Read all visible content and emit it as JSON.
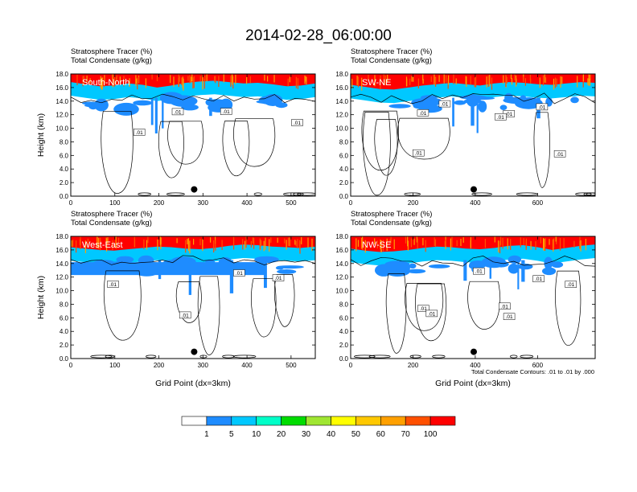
{
  "title": "2014-02-28_06:00:00",
  "colors": {
    "bands": [
      "#ffffff",
      "#1e8cff",
      "#00c8ff",
      "#00ffc8",
      "#00dc00",
      "#a0e632",
      "#ffff00",
      "#ffc800",
      "#ffa000",
      "#ff5000",
      "#ff0000"
    ],
    "contour": "#000000"
  },
  "chart_data": [
    {
      "type": "heatmap",
      "panel": "South-North",
      "subtitle_line1": "Stratosphere Tracer   (%)",
      "subtitle_line2": "Total Condensate   (g/kg)",
      "ylabel": "Height (km)",
      "xlabel": "",
      "xlim": [
        0,
        555
      ],
      "ylim": [
        0,
        18
      ],
      "xticks": [
        0,
        100,
        200,
        300,
        400,
        500
      ],
      "yticks": [
        "0.0",
        "2.0",
        "4.0",
        "6.0",
        "8.0",
        "10.0",
        "12.0",
        "14.0",
        "16.0",
        "18.0"
      ],
      "tracer_top_km": [
        16.4,
        16.1,
        15.8,
        15.9,
        16.2,
        16.0,
        15.6,
        15.9,
        16.3,
        16.5,
        16.6,
        16.4,
        16.2,
        16.3,
        16.1,
        15.8,
        15.9,
        16.2
      ],
      "contour_labels": [
        ".01",
        ".01",
        ".01",
        ".01"
      ],
      "marker_x": 280,
      "marker_y": 1.0
    },
    {
      "type": "heatmap",
      "panel": "SW-NE",
      "subtitle_line1": "Stratosphere Tracer   (%)",
      "subtitle_line2": "Total Condensate   (g/kg)",
      "ylabel": "",
      "xlabel": "",
      "xlim": [
        0,
        785
      ],
      "ylim": [
        0,
        18
      ],
      "xticks": [
        0,
        200,
        400,
        600
      ],
      "yticks": [
        "0.0",
        "2.0",
        "4.0",
        "6.0",
        "8.0",
        "10.0",
        "12.0",
        "14.0",
        "16.0",
        "18.0"
      ],
      "tracer_top_km": [
        16.0,
        15.7,
        15.4,
        15.3,
        15.6,
        15.9,
        16.1,
        16.3,
        16.1,
        15.9,
        16.2,
        16.4,
        16.3,
        16.1,
        16.0,
        16.2,
        16.4,
        16.3
      ],
      "contour_labels": [
        ".01",
        ".01",
        ".01",
        ".01",
        ".01",
        ".01",
        ".01"
      ],
      "marker_x": 395,
      "marker_y": 1.0
    },
    {
      "type": "heatmap",
      "panel": "West-East",
      "subtitle_line1": "Stratosphere Tracer   (%)",
      "subtitle_line2": "Total Condensate   (g/kg)",
      "ylabel": "Height (km)",
      "xlabel": "Grid Point (dx=3km)",
      "xlim": [
        0,
        555
      ],
      "ylim": [
        0,
        18
      ],
      "xticks": [
        0,
        100,
        200,
        300,
        400,
        500
      ],
      "yticks": [
        "0.0",
        "2.0",
        "4.0",
        "6.0",
        "8.0",
        "10.0",
        "12.0",
        "14.0",
        "16.0",
        "18.0"
      ],
      "tracer_top_km": [
        16.0,
        15.8,
        15.6,
        15.5,
        15.7,
        15.9,
        16.1,
        16.0,
        15.8,
        15.7,
        15.9,
        16.2,
        16.4,
        16.3,
        16.1,
        16.0,
        15.9,
        16.1
      ],
      "contour_labels": [
        ".01",
        ".01",
        ".01",
        ".01"
      ],
      "marker_x": 280,
      "marker_y": 1.0
    },
    {
      "type": "heatmap",
      "panel": "NW-SE",
      "subtitle_line1": "Stratosphere Tracer   (%)",
      "subtitle_line2": "Total Condensate   (g/kg)",
      "ylabel": "",
      "xlabel": "Grid Point (dx=3km)",
      "xlim": [
        0,
        785
      ],
      "ylim": [
        0,
        18
      ],
      "xticks": [
        0,
        200,
        400,
        600
      ],
      "yticks": [
        "0.0",
        "2.0",
        "4.0",
        "6.0",
        "8.0",
        "10.0",
        "12.0",
        "14.0",
        "16.0",
        "18.0"
      ],
      "tracer_top_km": [
        15.8,
        15.5,
        15.3,
        15.4,
        15.6,
        15.9,
        16.1,
        16.0,
        15.8,
        15.7,
        15.9,
        16.2,
        16.3,
        16.0,
        15.6,
        15.9,
        16.2,
        16.4
      ],
      "contour_labels": [
        ".01",
        ".01",
        ".01",
        ".01",
        ".01",
        ".01",
        ".01"
      ],
      "marker_x": 395,
      "marker_y": 1.0
    }
  ],
  "footnote": "Total Condensate Contours: .01 to .01 by .000",
  "colorbar": {
    "labels": [
      "1",
      "5",
      "10",
      "20",
      "30",
      "40",
      "50",
      "60",
      "70",
      "100"
    ]
  }
}
